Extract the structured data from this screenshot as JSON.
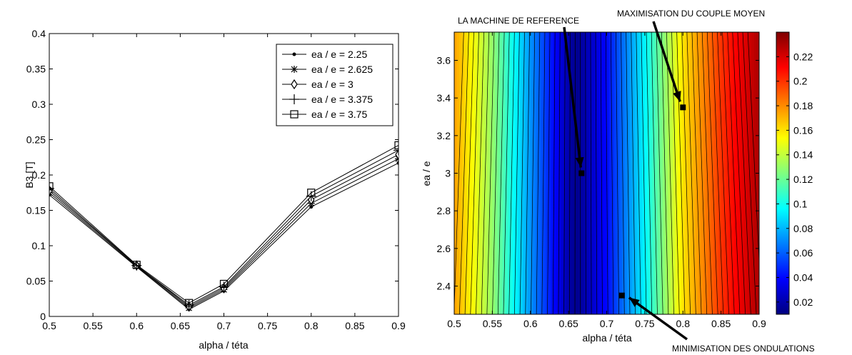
{
  "chart_data": [
    {
      "type": "line",
      "xlabel": "alpha / téta",
      "ylabel": "B3 [T]",
      "xlim": [
        0.5,
        0.9
      ],
      "ylim": [
        0,
        0.4
      ],
      "x_ticks": [
        "0.5",
        "0.55",
        "0.6",
        "0.65",
        "0.7",
        "0.75",
        "0.8",
        "0.85",
        "0.9"
      ],
      "y_ticks": [
        "0",
        "0.05",
        "0.1",
        "0.15",
        "0.2",
        "0.25",
        "0.3",
        "0.35",
        "0.4"
      ],
      "grid": false,
      "legend_position": "top-right",
      "x": [
        0.5,
        0.6,
        0.66,
        0.7,
        0.8,
        0.9
      ],
      "series": [
        {
          "name": "ea / e = 2.25",
          "marker": "dot",
          "values": [
            0.172,
            0.07,
            0.01,
            0.036,
            0.155,
            0.217
          ]
        },
        {
          "name": "ea / e = 2.625",
          "marker": "star",
          "values": [
            0.175,
            0.071,
            0.012,
            0.038,
            0.16,
            0.223
          ]
        },
        {
          "name": "ea / e = 3",
          "marker": "diamond",
          "values": [
            0.178,
            0.072,
            0.014,
            0.04,
            0.165,
            0.229
          ]
        },
        {
          "name": "ea / e = 3.375",
          "marker": "plus",
          "values": [
            0.181,
            0.072,
            0.016,
            0.042,
            0.17,
            0.235
          ]
        },
        {
          "name": "ea / e = 3.75",
          "marker": "square",
          "values": [
            0.184,
            0.073,
            0.019,
            0.046,
            0.175,
            0.242
          ]
        }
      ]
    },
    {
      "type": "heatmap",
      "xlabel": "alpha / téta",
      "ylabel": "ea / e",
      "xlim": [
        0.5,
        0.9
      ],
      "ylim": [
        2.25,
        3.75
      ],
      "x_ticks": [
        "0.5",
        "0.55",
        "0.6",
        "0.65",
        "0.7",
        "0.75",
        "0.8",
        "0.85",
        "0.9"
      ],
      "y_ticks": [
        "2.4",
        "2.6",
        "2.8",
        "3",
        "3.2",
        "3.4",
        "3.6"
      ],
      "colorbar_ticks": [
        "0.02",
        "0.04",
        "0.06",
        "0.08",
        "0.1",
        "0.12",
        "0.14",
        "0.16",
        "0.18",
        "0.2",
        "0.22"
      ],
      "colorbar_range": [
        0.01,
        0.24
      ],
      "colormap": "jet",
      "contour_lines": true,
      "minimum_line": [
        [
          0.67,
          2.25
        ],
        [
          0.665,
          3.0
        ],
        [
          0.66,
          3.75
        ]
      ],
      "profile_x": [
        0.5,
        0.55,
        0.6,
        0.65,
        0.66,
        0.7,
        0.75,
        0.8,
        0.85,
        0.9
      ],
      "profile_values": [
        0.175,
        0.13,
        0.072,
        0.02,
        0.013,
        0.04,
        0.095,
        0.16,
        0.2,
        0.23
      ],
      "annotations": [
        {
          "text": "LA MACHINE DE REFERENCE",
          "point": [
            0.667,
            3.0
          ]
        },
        {
          "text": "MAXIMISATION DU COUPLE MOYEN",
          "point": [
            0.8,
            3.35
          ]
        },
        {
          "text": "MINIMISATION DES ONDULATIONS",
          "point": [
            0.72,
            2.35
          ]
        }
      ]
    }
  ],
  "colors": {
    "frame": "#000000",
    "line": "#000000",
    "background": "#ffffff"
  }
}
